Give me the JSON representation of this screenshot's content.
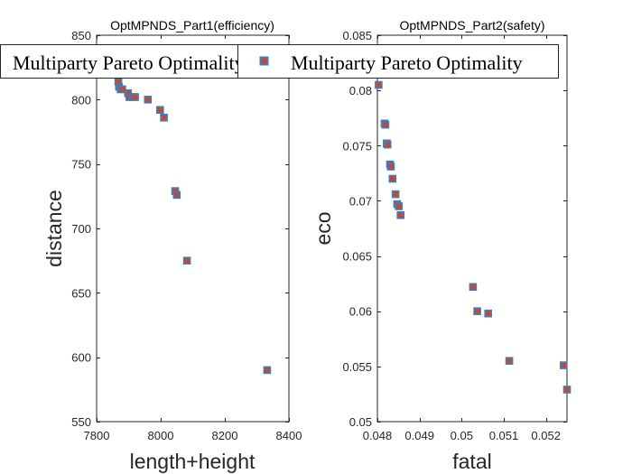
{
  "marker": {
    "edge_color": "#3b7fbf",
    "face_color": "#c9472b"
  },
  "chart_data": [
    {
      "type": "scatter",
      "title": "OptMPNDS_Part1(efficiency)",
      "xlabel": "length+height",
      "ylabel": "distance",
      "xlim": [
        7800,
        8400
      ],
      "ylim": [
        550,
        850
      ],
      "xticks": [
        7800,
        8000,
        8200,
        8400
      ],
      "yticks": [
        550,
        600,
        650,
        700,
        750,
        800,
        850
      ],
      "xtick_labels": [
        "7800",
        "8000",
        "8200",
        "8400"
      ],
      "ytick_labels": [
        "550",
        "600",
        "650",
        "700",
        "750",
        "800",
        "850"
      ],
      "legend": "Multiparty Pareto Optimality",
      "series": [
        {
          "name": "Multiparty Pareto Optimality",
          "points": [
            [
              7868,
              814
            ],
            [
              7870,
              810
            ],
            [
              7875,
              808
            ],
            [
              7880,
              808
            ],
            [
              7898,
              805
            ],
            [
              7902,
              802
            ],
            [
              7912,
              802
            ],
            [
              7920,
              802
            ],
            [
              7960,
              800
            ],
            [
              7998,
              792
            ],
            [
              8010,
              786
            ],
            [
              8045,
              729
            ],
            [
              8050,
              726
            ],
            [
              8082,
              675
            ],
            [
              8332,
              590
            ]
          ]
        }
      ]
    },
    {
      "type": "scatter",
      "title": "OptMPNDS_Part2(safety)",
      "xlabel": "fatal",
      "ylabel": "eco",
      "xlim": [
        0.048,
        0.0525
      ],
      "ylim": [
        0.05,
        0.085
      ],
      "xticks": [
        0.048,
        0.049,
        0.05,
        0.051,
        0.052
      ],
      "yticks": [
        0.05,
        0.055,
        0.06,
        0.065,
        0.07,
        0.075,
        0.08,
        0.085
      ],
      "xtick_labels": [
        "0.048",
        "0.049",
        "0.05",
        "0.051",
        "0.052"
      ],
      "ytick_labels": [
        "0.05",
        "0.055",
        "0.06",
        "0.065",
        "0.07",
        "0.075",
        "0.08",
        "0.085"
      ],
      "legend": "Multiparty Pareto Optimality",
      "series": [
        {
          "name": "Multiparty Pareto Optimality",
          "points": [
            [
              0.04803,
              0.0805
            ],
            [
              0.04817,
              0.077
            ],
            [
              0.04819,
              0.0769
            ],
            [
              0.04822,
              0.0752
            ],
            [
              0.04824,
              0.0751
            ],
            [
              0.0483,
              0.0733
            ],
            [
              0.04832,
              0.0731
            ],
            [
              0.04836,
              0.072
            ],
            [
              0.04843,
              0.0706
            ],
            [
              0.04847,
              0.0697
            ],
            [
              0.04851,
              0.0695
            ],
            [
              0.04855,
              0.0687
            ],
            [
              0.05027,
              0.0622
            ],
            [
              0.05037,
              0.06
            ],
            [
              0.05063,
              0.0598
            ],
            [
              0.05113,
              0.0555
            ],
            [
              0.05242,
              0.0551
            ],
            [
              0.0525,
              0.0529
            ]
          ]
        }
      ]
    }
  ]
}
